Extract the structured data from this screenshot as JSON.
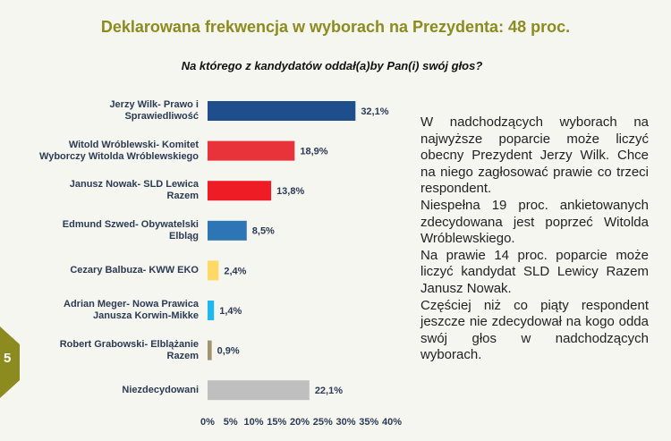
{
  "chart_data": {
    "type": "bar",
    "orientation": "horizontal",
    "title": "Deklarowana frekwencja w wyborach na Prezydenta: 48 proc.",
    "subtitle": "Na którego z kandydatów oddał(a)by Pan(i) swój głos?",
    "categories": [
      "Jerzy Wilk- Prawo i\nSprawiedliwość",
      "Witold Wróblewski- Komitet\nWyborczy Witolda Wróblewskiego",
      "Janusz Nowak- SLD Lewica\nRazem",
      "Edmund Szwed- Obywatelski\nElbląg",
      "Cezary Balbuza- KWW EKO",
      "Adrian Meger- Nowa Prawica\nJanusza Korwin-Mikke",
      "Robert Grabowski- Elblążanie\nRazem",
      "Niezdecydowani"
    ],
    "values": [
      32.1,
      18.9,
      13.8,
      8.5,
      2.4,
      1.4,
      0.9,
      22.1
    ],
    "value_labels": [
      "32,1%",
      "18,9%",
      "13,8%",
      "8,5%",
      "2,4%",
      "1,4%",
      "0,9%",
      "22,1%"
    ],
    "colors": [
      "#1f4e8c",
      "#e8333b",
      "#ee1c25",
      "#2e75b6",
      "#ffd966",
      "#1fb8ee",
      "#a39470",
      "#bfbfbf"
    ],
    "xlim": [
      0,
      40
    ],
    "xticks": [
      {
        "value": 0,
        "label": "0%"
      },
      {
        "value": 5,
        "label": "5%"
      },
      {
        "value": 10,
        "label": "10%"
      },
      {
        "value": 15,
        "label": "15%"
      },
      {
        "value": 20,
        "label": "20%"
      },
      {
        "value": 25,
        "label": "25%"
      },
      {
        "value": 30,
        "label": "30%"
      },
      {
        "value": 35,
        "label": "35%"
      },
      {
        "value": 40,
        "label": "40%"
      }
    ],
    "grid": false
  },
  "commentary": [
    "W nadchodzących wyborach na najwyższe poparcie może liczyć obecny Prezydent Jerzy Wilk. Chce na niego zagłosować prawie co trzeci respondent.",
    "Niespełna 19 proc. ankietowanych zdecydowana jest poprzeć Witolda Wróblewskiego.",
    "Na prawie 14 proc. poparcie może liczyć kandydat SLD Lewicy Razem Janusz Nowak.",
    "Częściej niż co piąty respondent jeszcze nie zdecydował na kogo odda swój głos w nadchodzących wyborach."
  ],
  "page_number": "5"
}
